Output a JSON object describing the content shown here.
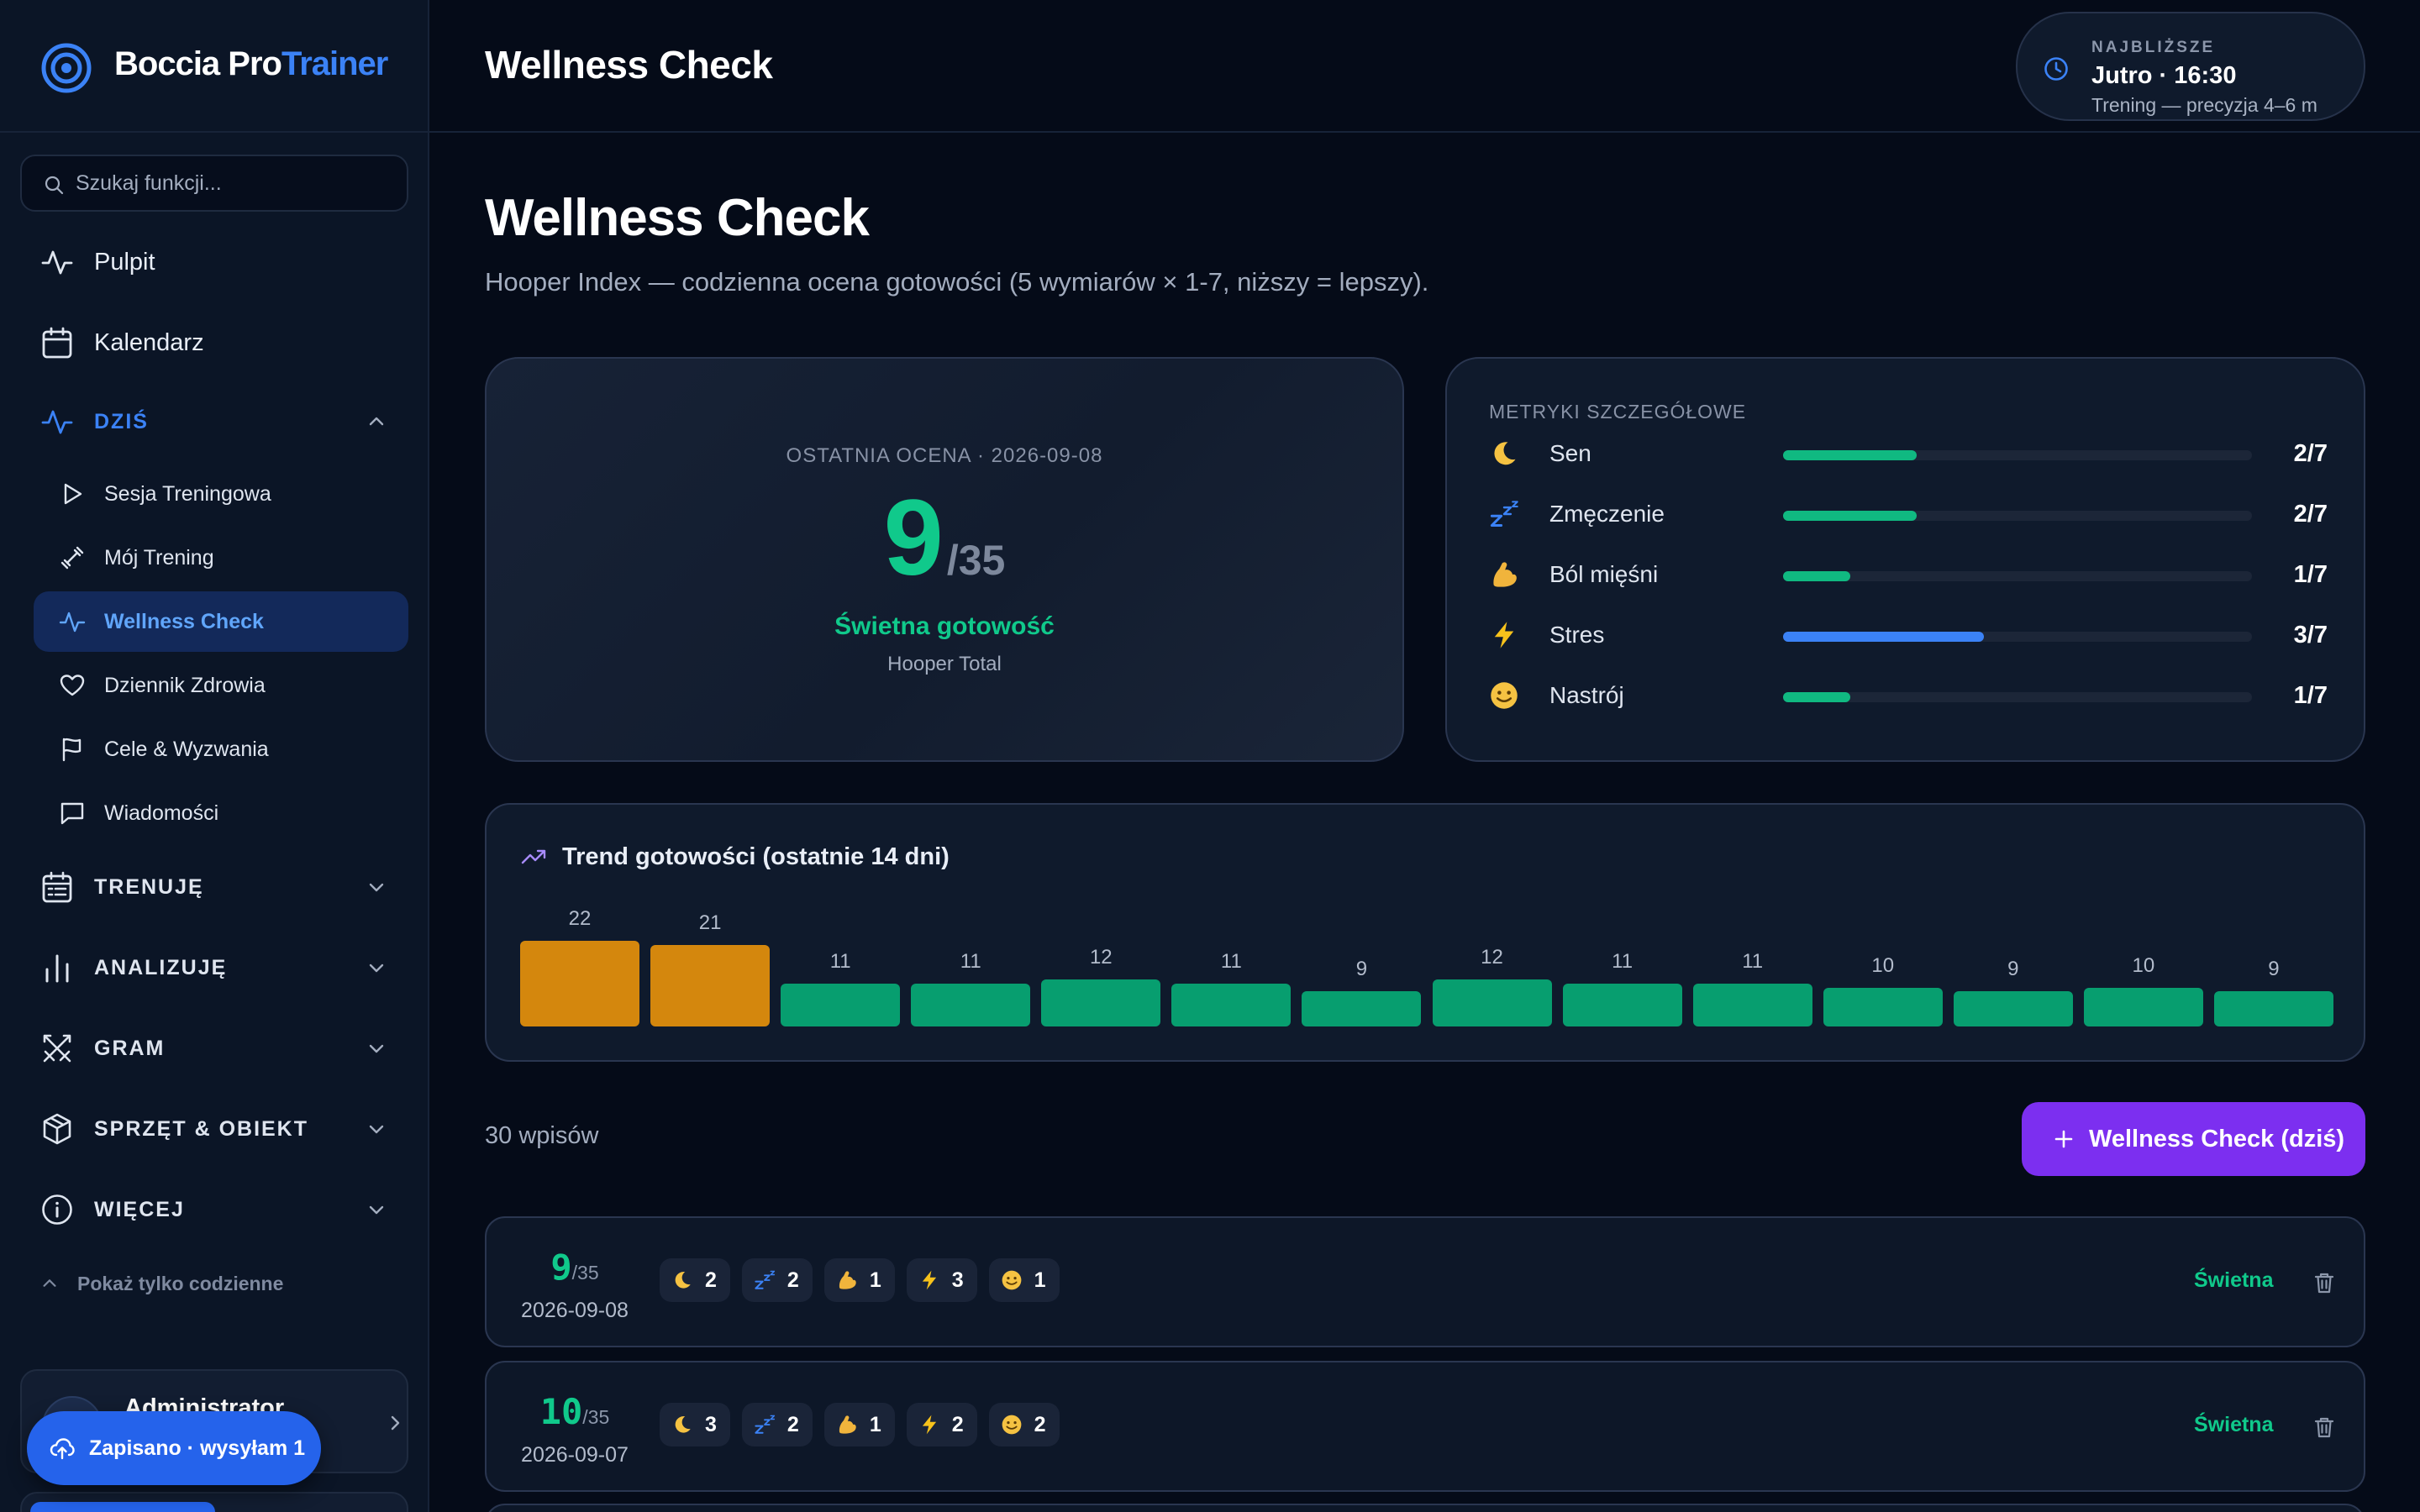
{
  "brand": {
    "name_main": "Boccia Pro",
    "name_accent": "Trainer",
    "accent_color": "#3b82f6"
  },
  "search": {
    "placeholder": "Szukaj funkcji..."
  },
  "nav": {
    "top": [
      {
        "label": "Pulpit",
        "icon": "activity-icon"
      },
      {
        "label": "Kalendarz",
        "icon": "calendar-icon"
      }
    ],
    "today_section": {
      "label": "DZIŚ",
      "expanded": true,
      "items": [
        {
          "label": "Sesja Treningowa",
          "icon": "play-icon"
        },
        {
          "label": "Mój Trening",
          "icon": "dumbbell-icon"
        },
        {
          "label": "Wellness Check",
          "icon": "activity-icon",
          "active": true
        },
        {
          "label": "Dziennik Zdrowia",
          "icon": "heart-icon"
        },
        {
          "label": "Cele & Wyzwania",
          "icon": "flag-icon"
        },
        {
          "label": "Wiadomości",
          "icon": "message-icon"
        }
      ]
    },
    "sections": [
      {
        "label": "TRENUJĘ",
        "icon": "calendar-list-icon"
      },
      {
        "label": "ANALIZUJĘ",
        "icon": "bar-chart-icon"
      },
      {
        "label": "GRAM",
        "icon": "swords-icon"
      },
      {
        "label": "SPRZĘT & OBIEKT",
        "icon": "box-icon"
      },
      {
        "label": "WIĘCEJ",
        "icon": "info-icon"
      }
    ],
    "show_daily_label": "Pokaż tylko codzienne"
  },
  "user": {
    "name": "Administrator"
  },
  "toast": {
    "label": "Zapisano · wysyłam 1"
  },
  "topbar": {
    "title": "Wellness Check",
    "upcoming": {
      "kicker": "NAJBLIŻSZE",
      "time": "Jutro · 16:30",
      "desc": "Trening — precyzja 4–6 m"
    }
  },
  "page": {
    "title": "Wellness Check",
    "subtitle": "Hooper Index — codzienna ocena gotowości (5 wymiarów × 1-7, niższy = lepszy)."
  },
  "score_card": {
    "kicker": "OSTATNIA OCENA · 2026-09-08",
    "score": "9",
    "max": "/35",
    "level": "Świetna gotowość",
    "caption": "Hooper Total"
  },
  "metrics_card": {
    "kicker": "METRYKI SZCZEGÓŁOWE",
    "items": [
      {
        "icon": "moon-icon",
        "name": "Sen",
        "value": 2,
        "max": 7,
        "display": "2/7",
        "color": "#10b981"
      },
      {
        "icon": "zzz-icon",
        "name": "Zmęczenie",
        "value": 2,
        "max": 7,
        "display": "2/7",
        "color": "#10b981"
      },
      {
        "icon": "flexed-biceps-icon",
        "name": "Ból mięśni",
        "value": 1,
        "max": 7,
        "display": "1/7",
        "color": "#10b981"
      },
      {
        "icon": "lightning-icon",
        "name": "Stres",
        "value": 3,
        "max": 7,
        "display": "3/7",
        "color": "#3b82f6"
      },
      {
        "icon": "smiley-icon",
        "name": "Nastrój",
        "value": 1,
        "max": 7,
        "display": "1/7",
        "color": "#10b981"
      }
    ]
  },
  "trend": {
    "title": "Trend gotowości (ostatnie 14 dni)",
    "values": [
      22,
      21,
      11,
      11,
      12,
      11,
      9,
      12,
      11,
      11,
      10,
      9,
      10,
      9
    ],
    "high_color": "#d4870d",
    "good_color": "#079e6f",
    "high_threshold": 20
  },
  "entries_count": "30 wpisów",
  "add_button": {
    "label": "Wellness Check (dziś)"
  },
  "entries": [
    {
      "score": "9",
      "max": "/35",
      "date": "2026-09-08",
      "status": "Świetna",
      "chips": [
        {
          "icon": "moon-icon",
          "value": "2"
        },
        {
          "icon": "zzz-icon",
          "value": "2"
        },
        {
          "icon": "flexed-biceps-icon",
          "value": "1"
        },
        {
          "icon": "lightning-icon",
          "value": "3"
        },
        {
          "icon": "smiley-icon",
          "value": "1"
        }
      ]
    },
    {
      "score": "10",
      "max": "/35",
      "date": "2026-09-07",
      "status": "Świetna",
      "chips": [
        {
          "icon": "moon-icon",
          "value": "3"
        },
        {
          "icon": "zzz-icon",
          "value": "2"
        },
        {
          "icon": "flexed-biceps-icon",
          "value": "1"
        },
        {
          "icon": "lightning-icon",
          "value": "2"
        },
        {
          "icon": "smiley-icon",
          "value": "2"
        }
      ]
    }
  ]
}
